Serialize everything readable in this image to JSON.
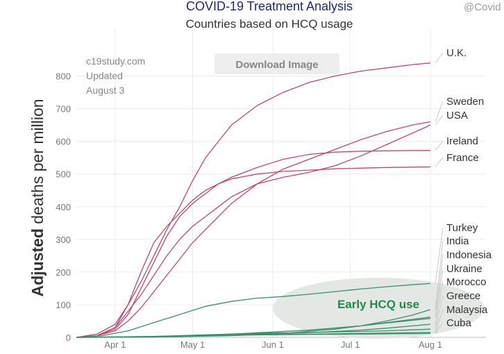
{
  "header": {
    "title": "COVID-19 Treatment Analysis",
    "subtitle": "Countries based on HCQ usage",
    "watermark": "@Covid"
  },
  "note": {
    "line1": "c19study.com",
    "line2": "Updated",
    "line3": "August 3"
  },
  "download_button": {
    "label": "Download Image"
  },
  "annotation": {
    "label": "Early HCQ use"
  },
  "colors": {
    "high_use_low": "#c04670",
    "early_hcq": "#3b8f6a",
    "ellipse": "#e3e8e4"
  },
  "chart_data": {
    "type": "line",
    "title": "COVID-19 Treatment Analysis",
    "subtitle": "Countries based on HCQ usage",
    "ylabel_bold": "Adjusted",
    "ylabel_rest": " deaths per million",
    "xlabel": "",
    "x_ticks": [
      {
        "label": "Apr 1",
        "day": 15
      },
      {
        "label": "May 1",
        "day": 45
      },
      {
        "label": "Jun 1",
        "day": 76
      },
      {
        "label": "Jul 1",
        "day": 106
      },
      {
        "label": "Aug 1",
        "day": 137
      }
    ],
    "xlim_days": [
      0,
      137
    ],
    "ylim": [
      0,
      850
    ],
    "y_ticks": [
      0,
      100,
      200,
      300,
      400,
      500,
      600,
      700,
      800
    ],
    "grid": true,
    "series": [
      {
        "name": "U.K.",
        "group": "limited",
        "label_value": 840,
        "x": [
          0,
          8,
          15,
          20,
          25,
          30,
          35,
          40,
          45,
          50,
          55,
          60,
          70,
          80,
          90,
          100,
          110,
          120,
          130,
          137
        ],
        "y": [
          0,
          10,
          40,
          100,
          170,
          250,
          330,
          400,
          480,
          550,
          600,
          650,
          710,
          750,
          780,
          800,
          815,
          825,
          835,
          840
        ]
      },
      {
        "name": "Sweden",
        "group": "limited",
        "label_value": 660,
        "x": [
          0,
          8,
          15,
          20,
          25,
          30,
          35,
          40,
          45,
          50,
          55,
          60,
          70,
          80,
          90,
          100,
          110,
          120,
          130,
          137
        ],
        "y": [
          0,
          5,
          20,
          50,
          90,
          140,
          190,
          240,
          290,
          330,
          370,
          410,
          470,
          515,
          545,
          575,
          605,
          630,
          650,
          660
        ]
      },
      {
        "name": "USA",
        "group": "limited",
        "label_value": 650,
        "x": [
          0,
          8,
          15,
          20,
          25,
          30,
          35,
          40,
          45,
          50,
          55,
          60,
          70,
          80,
          90,
          100,
          110,
          120,
          130,
          137
        ],
        "y": [
          0,
          5,
          30,
          80,
          130,
          190,
          250,
          300,
          340,
          370,
          400,
          430,
          470,
          490,
          505,
          525,
          555,
          590,
          625,
          650
        ]
      },
      {
        "name": "Ireland",
        "group": "limited",
        "label_value": 572,
        "x": [
          0,
          8,
          15,
          20,
          25,
          30,
          35,
          40,
          45,
          50,
          55,
          60,
          70,
          80,
          90,
          100,
          110,
          120,
          130,
          137
        ],
        "y": [
          0,
          5,
          25,
          70,
          150,
          230,
          310,
          370,
          410,
          440,
          470,
          490,
          520,
          545,
          560,
          567,
          570,
          571,
          572,
          572
        ]
      },
      {
        "name": "France",
        "group": "limited",
        "label_value": 522,
        "x": [
          0,
          8,
          15,
          20,
          25,
          30,
          35,
          40,
          45,
          50,
          55,
          60,
          70,
          80,
          90,
          100,
          110,
          120,
          130,
          137
        ],
        "y": [
          0,
          5,
          30,
          100,
          200,
          290,
          340,
          380,
          420,
          450,
          470,
          485,
          500,
          508,
          512,
          516,
          518,
          520,
          521,
          522
        ]
      },
      {
        "name": "Turkey",
        "group": "early",
        "label_value": 165,
        "x": [
          0,
          10,
          20,
          30,
          40,
          50,
          60,
          70,
          80,
          90,
          100,
          110,
          120,
          130,
          137
        ],
        "y": [
          0,
          5,
          20,
          45,
          70,
          95,
          110,
          120,
          125,
          132,
          140,
          148,
          155,
          161,
          165
        ]
      },
      {
        "name": "India",
        "group": "early",
        "label_value": 85,
        "x": [
          0,
          30,
          60,
          80,
          100,
          110,
          120,
          130,
          137
        ],
        "y": [
          0,
          1,
          5,
          12,
          25,
          35,
          50,
          68,
          85
        ]
      },
      {
        "name": "Indonesia",
        "group": "early",
        "label_value": 62,
        "x": [
          0,
          30,
          60,
          90,
          110,
          120,
          130,
          137
        ],
        "y": [
          0,
          2,
          10,
          22,
          35,
          45,
          55,
          62
        ]
      },
      {
        "name": "Ukraine",
        "group": "early",
        "label_value": 58,
        "x": [
          0,
          30,
          60,
          90,
          110,
          120,
          130,
          137
        ],
        "y": [
          0,
          1,
          8,
          22,
          35,
          44,
          52,
          58
        ]
      },
      {
        "name": "Morocco",
        "group": "early",
        "label_value": 40,
        "x": [
          0,
          30,
          60,
          90,
          110,
          120,
          130,
          137
        ],
        "y": [
          0,
          2,
          7,
          14,
          22,
          28,
          35,
          40
        ]
      },
      {
        "name": "Greece",
        "group": "early",
        "label_value": 25,
        "x": [
          0,
          30,
          60,
          90,
          110,
          120,
          130,
          137
        ],
        "y": [
          0,
          3,
          10,
          15,
          18,
          20,
          23,
          25
        ]
      },
      {
        "name": "Malaysia",
        "group": "early",
        "label_value": 15,
        "x": [
          0,
          30,
          60,
          90,
          110,
          137
        ],
        "y": [
          0,
          2,
          6,
          10,
          12,
          15
        ]
      },
      {
        "name": "Cuba",
        "group": "early",
        "label_value": 12,
        "x": [
          0,
          30,
          60,
          90,
          110,
          137
        ],
        "y": [
          0,
          3,
          7,
          9,
          10,
          12
        ]
      }
    ]
  }
}
